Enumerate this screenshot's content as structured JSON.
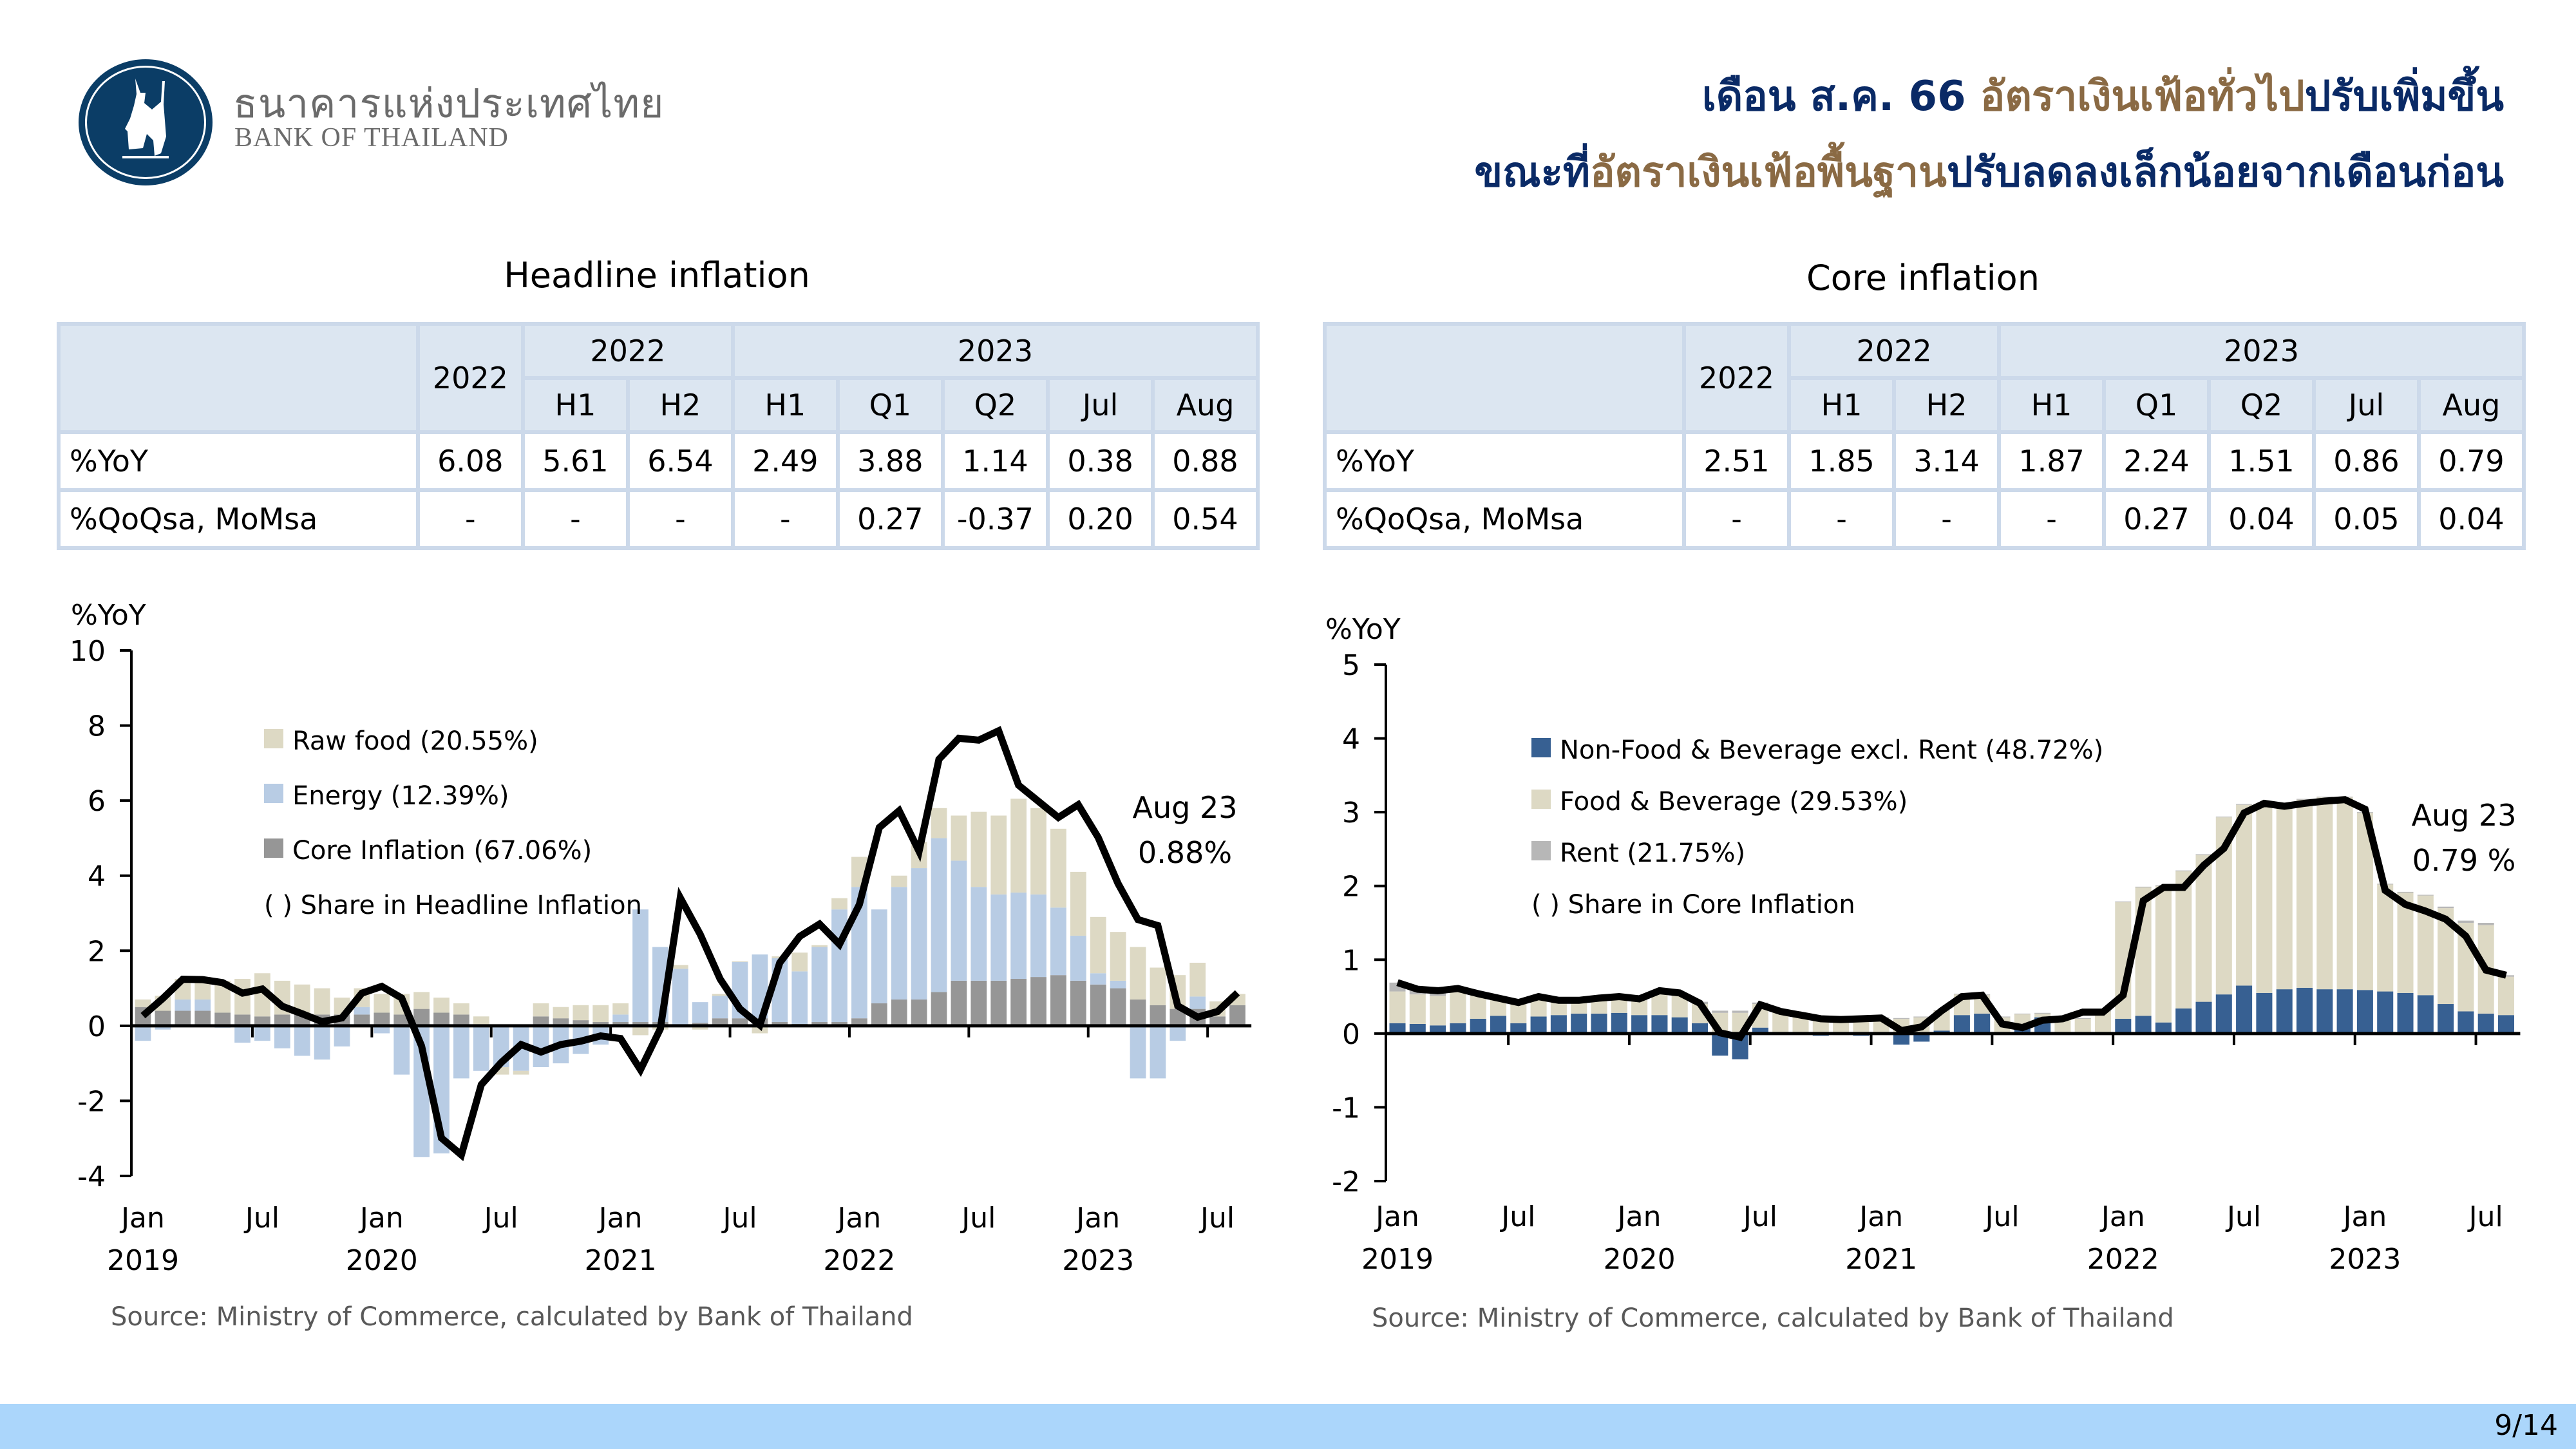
{
  "header": {
    "logo_th": "ธนาคารแห่งประเทศไทย",
    "logo_en": "BANK OF THAILAND",
    "title_line1": [
      {
        "text": "เดือน ส.ค. 66 ",
        "accent": false
      },
      {
        "text": "อัตราเงินเฟ้อทั่วไป",
        "accent": true
      },
      {
        "text": "ปรับเพิ่มขึ้น",
        "accent": false
      }
    ],
    "title_line2": [
      {
        "text": "ขณะที่",
        "accent": false
      },
      {
        "text": "อัตราเงินเฟ้อพื้นฐาน",
        "accent": true
      },
      {
        "text": "ปรับลดลงเล็กน้อยจากเดือนก่อน",
        "accent": false
      }
    ],
    "colors": {
      "title": "#0a2a66",
      "accent": "#8a6a44"
    }
  },
  "headline": {
    "section_title": "Headline inflation",
    "table": {
      "header_top": [
        "",
        "2022",
        "2022",
        "2023"
      ],
      "header_sub": [
        "H1",
        "H2",
        "H1",
        "Q1",
        "Q2",
        "Jul",
        "Aug"
      ],
      "rows": [
        {
          "label": "%YoY",
          "values": [
            "6.08",
            "5.61",
            "6.54",
            "2.49",
            "3.88",
            "1.14",
            "0.38",
            "0.88"
          ]
        },
        {
          "label": "%QoQsa, MoMsa",
          "values": [
            "-",
            "-",
            "-",
            "-",
            "0.27",
            "-0.37",
            "0.20",
            "0.54"
          ]
        }
      ]
    },
    "source": "Source: Ministry of Commerce, calculated by Bank of Thailand"
  },
  "core": {
    "section_title": "Core inflation",
    "table": {
      "header_top": [
        "",
        "2022",
        "2022",
        "2023"
      ],
      "header_sub": [
        "H1",
        "H2",
        "H1",
        "Q1",
        "Q2",
        "Jul",
        "Aug"
      ],
      "rows": [
        {
          "label": "%YoY",
          "values": [
            "2.51",
            "1.85",
            "3.14",
            "1.87",
            "2.24",
            "1.51",
            "0.86",
            "0.79"
          ]
        },
        {
          "label": "%QoQsa, MoMsa",
          "values": [
            "-",
            "-",
            "-",
            "-",
            "0.27",
            "0.04",
            "0.05",
            "0.04"
          ]
        }
      ]
    },
    "source": "Source: Ministry of Commerce, calculated by Bank of Thailand"
  },
  "footer": {
    "page": "9/14"
  },
  "chart_data": [
    {
      "type": "bar",
      "stacked": true,
      "title": "Headline inflation contributions",
      "ylabel": "%YoY",
      "ylim": [
        -4,
        10
      ],
      "yticks": [
        -4,
        -2,
        0,
        2,
        4,
        6,
        8,
        10
      ],
      "x_tick_labels": [
        "Jan",
        "Jul",
        "Jan",
        "Jul",
        "Jan",
        "Jul",
        "Jan",
        "Jul",
        "Jan",
        "Jul"
      ],
      "x_year_labels": [
        "2019",
        "2020",
        "2021",
        "2022",
        "2023"
      ],
      "x_start": "2019-01",
      "x_end": "2023-08",
      "legend": [
        "Raw food (20.55%)",
        "Energy (12.39%)",
        "Core Inflation (67.06%)",
        "( ) Share in Headline Inflation"
      ],
      "legend_position": "top-left",
      "annotation": [
        "Aug 23",
        "0.88%"
      ],
      "series": [
        {
          "name": "Core Inflation",
          "color": "#969696",
          "values": [
            0.5,
            0.4,
            0.4,
            0.4,
            0.35,
            0.3,
            0.25,
            0.3,
            0.3,
            0.3,
            0.3,
            0.3,
            0.35,
            0.3,
            0.45,
            0.35,
            0.3,
            0,
            0,
            0,
            0.25,
            0.2,
            0.15,
            0.1,
            0.1,
            0.1,
            0.1,
            0.02,
            0.08,
            0.2,
            0.2,
            0.2,
            0.1,
            0.05,
            0.1,
            0.1,
            0.2,
            0.6,
            0.7,
            0.7,
            0.9,
            1.2,
            1.2,
            1.2,
            1.25,
            1.3,
            1.35,
            1.2,
            1.1,
            1.0,
            0.7,
            0.55,
            0.45,
            0.45,
            0.25,
            0.55
          ]
        },
        {
          "name": "Energy",
          "color": "#b8cce4",
          "values": [
            -0.4,
            -0.1,
            0.3,
            0.3,
            -0.05,
            -0.45,
            -0.4,
            -0.6,
            -0.8,
            -0.9,
            -0.55,
            0.2,
            -0.2,
            -1.3,
            -3.5,
            -3.4,
            -1.4,
            -1.2,
            -1.1,
            -1.2,
            -1.1,
            -1.0,
            -0.75,
            -0.5,
            0.2,
            3.0,
            2.0,
            1.5,
            0.55,
            0.6,
            1.5,
            1.7,
            1.7,
            1.4,
            2.0,
            3.0,
            3.5,
            2.5,
            3.0,
            3.5,
            4.1,
            3.2,
            2.5,
            2.3,
            2.3,
            2.2,
            1.8,
            1.2,
            0.3,
            0.2,
            -1.4,
            -1.4,
            -0.4,
            0.33,
            0,
            0
          ]
        },
        {
          "name": "Raw food",
          "color": "#ddd9c4",
          "values": [
            0.2,
            0.4,
            0.55,
            0.6,
            0.85,
            0.95,
            1.15,
            0.9,
            0.8,
            0.7,
            0.45,
            0.5,
            0.5,
            0.55,
            0.45,
            0.4,
            0.3,
            0.25,
            -0.2,
            -0.1,
            0.35,
            0.3,
            0.4,
            0.45,
            0.3,
            -0.25,
            -0.1,
            0.1,
            -0.1,
            0.05,
            0.02,
            -0.2,
            0.05,
            0.5,
            0.05,
            0.3,
            0.8,
            0.0,
            0.3,
            0.7,
            0.8,
            1.2,
            2.0,
            2.1,
            2.5,
            2.3,
            2.1,
            1.7,
            1.5,
            1.3,
            1.4,
            1.0,
            0.9,
            0.9,
            0.4,
            0.3
          ]
        }
      ],
      "line": {
        "name": "Headline inflation",
        "color": "#000000",
        "values": [
          0.27,
          0.73,
          1.24,
          1.23,
          1.15,
          0.87,
          0.98,
          0.52,
          0.32,
          0.11,
          0.21,
          0.87,
          1.05,
          0.74,
          -0.54,
          -2.99,
          -3.44,
          -1.57,
          -0.98,
          -0.5,
          -0.7,
          -0.5,
          -0.41,
          -0.27,
          -0.34,
          -1.17,
          -0.08,
          3.41,
          2.44,
          1.25,
          0.45,
          0.02,
          1.68,
          2.38,
          2.71,
          2.17,
          3.23,
          5.28,
          5.73,
          4.65,
          7.1,
          7.66,
          7.61,
          7.86,
          6.41,
          5.98,
          5.55,
          5.89,
          5.02,
          3.79,
          2.83,
          2.67,
          0.53,
          0.23,
          0.38,
          0.88
        ]
      }
    },
    {
      "type": "bar",
      "stacked": true,
      "title": "Core inflation contributions",
      "ylabel": "%YoY",
      "ylim": [
        -2,
        5
      ],
      "yticks": [
        -2,
        -1,
        0,
        1,
        2,
        3,
        4,
        5
      ],
      "x_tick_labels": [
        "Jan",
        "Jul",
        "Jan",
        "Jul",
        "Jan",
        "Jul",
        "Jan",
        "Jul",
        "Jan",
        "Jul"
      ],
      "x_year_labels": [
        "2019",
        "2020",
        "2021",
        "2022",
        "2023"
      ],
      "x_start": "2019-01",
      "x_end": "2023-08",
      "legend": [
        "Non-Food & Beverage excl. Rent (48.72%)",
        "Food & Beverage (29.53%)",
        "Rent (21.75%)",
        "( ) Share in Core Inflation"
      ],
      "legend_position": "top-left",
      "annotation": [
        "Aug 23",
        "0.79 %"
      ],
      "series": [
        {
          "name": "Non-Food & Beverage excl. Rent",
          "color": "#376092",
          "values": [
            0.14,
            0.13,
            0.11,
            0.14,
            0.2,
            0.24,
            0.14,
            0.23,
            0.25,
            0.27,
            0.27,
            0.28,
            0.25,
            0.25,
            0.22,
            0.14,
            -0.3,
            -0.35,
            0.08,
            0,
            0,
            -0.03,
            -0.02,
            -0.03,
            0,
            -0.15,
            -0.11,
            0.04,
            0.25,
            0.27,
            0.02,
            0.13,
            0.22,
            0,
            0,
            0.02,
            0.2,
            0.24,
            0.15,
            0.34,
            0.43,
            0.53,
            0.65,
            0.55,
            0.6,
            0.62,
            0.6,
            0.6,
            0.59,
            0.57,
            0.55,
            0.52,
            0.4,
            0.3,
            0.27,
            0.25
          ]
        },
        {
          "name": "Food & Beverage",
          "color": "#ddd9c4",
          "values": [
            0.43,
            0.4,
            0.4,
            0.47,
            0.33,
            0.25,
            0.29,
            0.23,
            0.18,
            0.17,
            0.21,
            0.22,
            0.2,
            0.33,
            0.29,
            0.26,
            0.28,
            0.28,
            0.32,
            0.3,
            0.27,
            0.21,
            0.2,
            0.21,
            0.21,
            0.2,
            0.22,
            0.27,
            0.28,
            0.25,
            0.2,
            0.13,
            0.05,
            0.19,
            0.2,
            0.28,
            1.58,
            1.74,
            1.85,
            1.86,
            1.99,
            2.4,
            2.45,
            2.55,
            2.5,
            2.55,
            2.6,
            2.6,
            2.4,
            1.45,
            1.36,
            1.35,
            1.3,
            1.2,
            1.2,
            0.52
          ]
        },
        {
          "name": "Rent",
          "color": "#b7b7b7",
          "values": [
            0.12,
            0.07,
            0.07,
            0.02,
            0.02,
            0.01,
            0.01,
            0.01,
            0.01,
            0.01,
            0.01,
            0.01,
            0.01,
            0.01,
            0.02,
            0.03,
            0.03,
            0.03,
            0.02,
            0.01,
            0.01,
            0.01,
            0.01,
            0.01,
            0.01,
            0.01,
            0.01,
            0.01,
            0.01,
            0.01,
            0.01,
            0.01,
            0.01,
            0.01,
            0.01,
            0.01,
            0.01,
            0.01,
            0.01,
            0.01,
            0.01,
            0.01,
            0.01,
            0.01,
            0.01,
            0.01,
            0.01,
            0.01,
            0.01,
            0.01,
            0.01,
            0.01,
            0.02,
            0.03,
            0.03,
            0.02
          ]
        }
      ],
      "line": {
        "name": "Core inflation",
        "color": "#000000",
        "values": [
          0.69,
          0.6,
          0.58,
          0.61,
          0.54,
          0.48,
          0.42,
          0.5,
          0.45,
          0.45,
          0.48,
          0.5,
          0.47,
          0.58,
          0.55,
          0.41,
          0.01,
          -0.05,
          0.39,
          0.3,
          0.25,
          0.2,
          0.19,
          0.2,
          0.21,
          0.04,
          0.09,
          0.31,
          0.5,
          0.52,
          0.13,
          0.08,
          0.18,
          0.2,
          0.29,
          0.29,
          0.52,
          1.8,
          1.98,
          1.98,
          2.28,
          2.51,
          2.99,
          3.12,
          3.08,
          3.12,
          3.15,
          3.17,
          3.04,
          1.94,
          1.75,
          1.66,
          1.55,
          1.32,
          0.86,
          0.79
        ]
      }
    }
  ]
}
